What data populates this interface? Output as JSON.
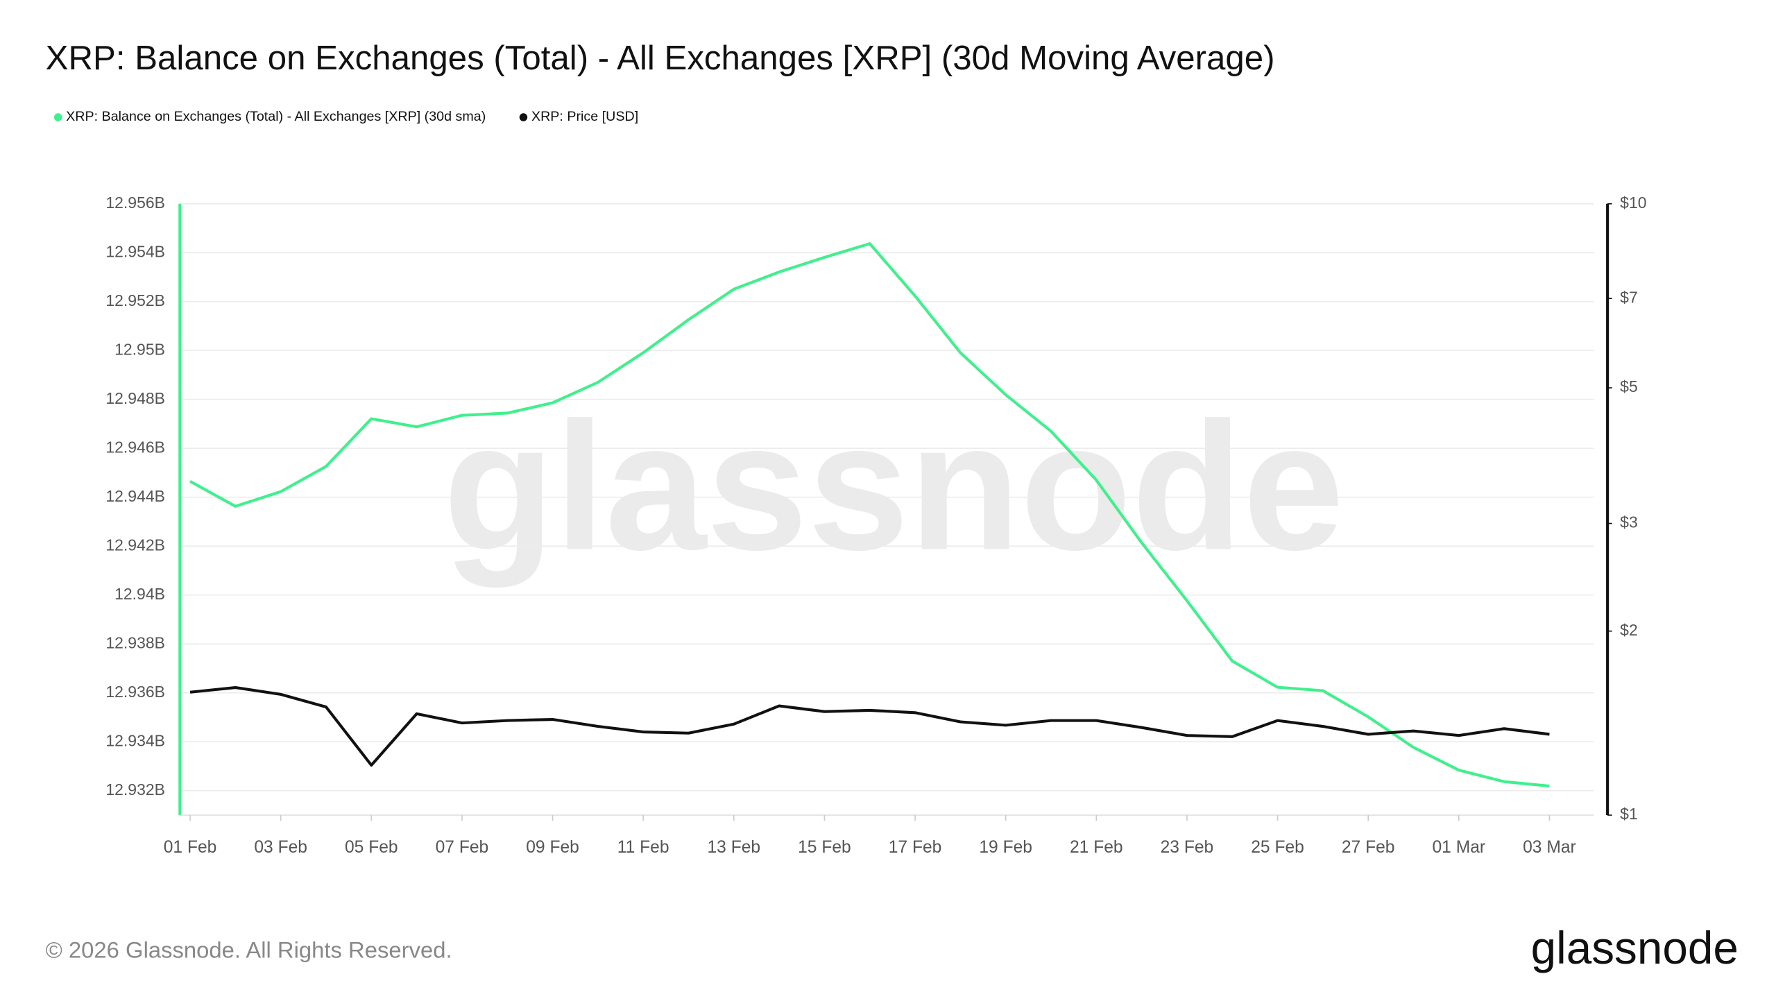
{
  "chart_data": {
    "type": "line",
    "title": "XRP: Balance on Exchanges (Total) - All Exchanges [XRP] (30d Moving Average)",
    "categories": [
      "01 Feb",
      null,
      "03 Feb",
      null,
      "05 Feb",
      null,
      "07 Feb",
      null,
      "09 Feb",
      null,
      "11 Feb",
      null,
      "13 Feb",
      null,
      "15 Feb",
      null,
      "17 Feb",
      null,
      "19 Feb",
      null,
      "21 Feb",
      null,
      "23 Feb",
      null,
      "25 Feb",
      null,
      "27 Feb",
      null,
      "01 Mar",
      null,
      "03 Mar"
    ],
    "series": [
      {
        "name": "XRP: Balance on Exchanges (Total) - All Exchanges [XRP] (30d sma)",
        "color": "#3ff08c",
        "axis": "y",
        "values": [
          12944650000,
          12943630000,
          12944230000,
          12945260000,
          12947210000,
          12946880000,
          12947350000,
          12947440000,
          12947860000,
          12948700000,
          12949910000,
          12951260000,
          12952510000,
          12953210000,
          12953810000,
          12954370000,
          12952230000,
          12949910000,
          12948190000,
          12946700000,
          12944700000,
          12942140000,
          12939770000,
          12937300000,
          12936230000,
          12936090000,
          12935020000,
          12933770000,
          12932840000,
          12932370000,
          12932190000
        ]
      },
      {
        "name": "XRP: Price [USD]",
        "color": "#111111",
        "axis": "y2",
        "values": [
          1.589,
          1.617,
          1.576,
          1.503,
          1.207,
          1.465,
          1.415,
          1.428,
          1.434,
          1.397,
          1.368,
          1.362,
          1.409,
          1.509,
          1.477,
          1.484,
          1.471,
          1.421,
          1.403,
          1.428,
          1.428,
          1.391,
          1.35,
          1.344,
          1.428,
          1.397,
          1.356,
          1.373,
          1.35,
          1.385,
          1.356
        ]
      }
    ],
    "ylim": [
      12931000000,
      12956000000
    ],
    "yticks": [
      {
        "value": 12932000000,
        "label": "12.932B"
      },
      {
        "value": 12934000000,
        "label": "12.934B"
      },
      {
        "value": 12936000000,
        "label": "12.936B"
      },
      {
        "value": 12938000000,
        "label": "12.938B"
      },
      {
        "value": 12940000000,
        "label": "12.94B"
      },
      {
        "value": 12942000000,
        "label": "12.942B"
      },
      {
        "value": 12944000000,
        "label": "12.944B"
      },
      {
        "value": 12946000000,
        "label": "12.946B"
      },
      {
        "value": 12948000000,
        "label": "12.948B"
      },
      {
        "value": 12950000000,
        "label": "12.95B"
      },
      {
        "value": 12952000000,
        "label": "12.952B"
      },
      {
        "value": 12954000000,
        "label": "12.954B"
      },
      {
        "value": 12956000000,
        "label": "12.956B"
      }
    ],
    "y2lim": [
      1,
      10
    ],
    "y2log": true,
    "y2ticks": [
      {
        "value": 1,
        "label": "$1"
      },
      {
        "value": 2,
        "label": "$2"
      },
      {
        "value": 3,
        "label": "$3"
      },
      {
        "value": 5,
        "label": "$5"
      },
      {
        "value": 7,
        "label": "$7"
      },
      {
        "value": 10,
        "label": "$10"
      }
    ],
    "grid": true,
    "legend": "top-left",
    "watermark": "glassnode",
    "copyright": "© 2026 Glassnode. All Rights Reserved.",
    "logo": "glassnode"
  }
}
